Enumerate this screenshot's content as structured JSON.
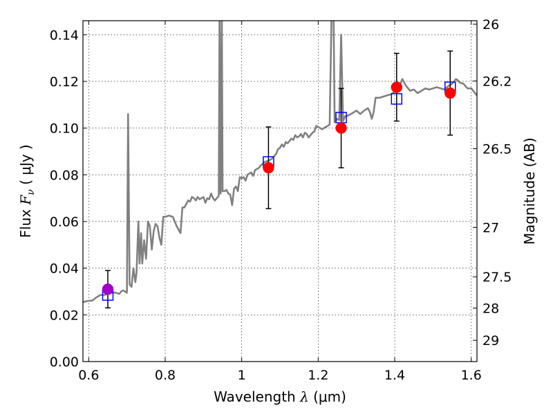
{
  "chart_data": {
    "type": "line",
    "xlabel": "Wavelength  λ (μm)",
    "xlabel_parts": {
      "prefix": "Wavelength  ",
      "symbol": "λ",
      "suffix": " (μm)"
    },
    "ylabel": "Flux  Fν  ( μJy )",
    "ylabel_parts": {
      "prefix": "Flux  ",
      "symbol": "F",
      "subscript": "ν",
      "suffix": "  ( μJy )"
    },
    "y2label": "Magnitude (AB)",
    "xlim": [
      0.585,
      1.615
    ],
    "ylim": [
      0.0,
      0.146
    ],
    "grid": true,
    "x_ticks": [
      0.6,
      0.8,
      1.0,
      1.2,
      1.4,
      1.6
    ],
    "x_tick_labels": [
      "0.6",
      "0.8",
      "1",
      "1.2",
      "1.4",
      "1.6"
    ],
    "y_ticks": [
      0.0,
      0.02,
      0.04,
      0.06,
      0.08,
      0.1,
      0.12,
      0.14
    ],
    "y_tick_labels": [
      "0.00",
      "0.02",
      "0.04",
      "0.06",
      "0.08",
      "0.10",
      "0.12",
      "0.14"
    ],
    "y2_ticks": [
      {
        "label": "26",
        "flux": 0.1445
      },
      {
        "label": "26.2",
        "flux": 0.1202
      },
      {
        "label": "26.5",
        "flux": 0.0912
      },
      {
        "label": "27",
        "flux": 0.0575
      },
      {
        "label": "27.5",
        "flux": 0.0363
      },
      {
        "label": "28",
        "flux": 0.0229
      },
      {
        "label": "29",
        "flux": 0.0091
      }
    ],
    "model_spectrum": {
      "color": "#808080",
      "points": [
        [
          0.585,
          0.0255
        ],
        [
          0.6,
          0.026
        ],
        [
          0.61,
          0.0262
        ],
        [
          0.62,
          0.0275
        ],
        [
          0.63,
          0.0285
        ],
        [
          0.64,
          0.0285
        ],
        [
          0.65,
          0.029
        ],
        [
          0.66,
          0.0295
        ],
        [
          0.67,
          0.0295
        ],
        [
          0.68,
          0.029
        ],
        [
          0.685,
          0.03
        ],
        [
          0.69,
          0.0305
        ],
        [
          0.695,
          0.03
        ],
        [
          0.7,
          0.0295
        ],
        [
          0.703,
          0.106
        ],
        [
          0.707,
          0.033
        ],
        [
          0.712,
          0.032
        ],
        [
          0.717,
          0.04
        ],
        [
          0.722,
          0.034
        ],
        [
          0.725,
          0.038
        ],
        [
          0.73,
          0.06
        ],
        [
          0.733,
          0.042
        ],
        [
          0.737,
          0.055
        ],
        [
          0.74,
          0.042
        ],
        [
          0.745,
          0.052
        ],
        [
          0.75,
          0.044
        ],
        [
          0.755,
          0.06
        ],
        [
          0.76,
          0.058
        ],
        [
          0.765,
          0.048
        ],
        [
          0.77,
          0.056
        ],
        [
          0.775,
          0.059
        ],
        [
          0.78,
          0.058
        ],
        [
          0.785,
          0.053
        ],
        [
          0.79,
          0.05
        ],
        [
          0.795,
          0.062
        ],
        [
          0.8,
          0.062
        ],
        [
          0.81,
          0.0625
        ],
        [
          0.82,
          0.062
        ],
        [
          0.83,
          0.058
        ],
        [
          0.84,
          0.055
        ],
        [
          0.845,
          0.066
        ],
        [
          0.85,
          0.066
        ],
        [
          0.86,
          0.069
        ],
        [
          0.865,
          0.0685
        ],
        [
          0.87,
          0.0705
        ],
        [
          0.875,
          0.07
        ],
        [
          0.88,
          0.069
        ],
        [
          0.885,
          0.0705
        ],
        [
          0.89,
          0.0695
        ],
        [
          0.895,
          0.07
        ],
        [
          0.9,
          0.0705
        ],
        [
          0.905,
          0.068
        ],
        [
          0.91,
          0.07
        ],
        [
          0.915,
          0.0695
        ],
        [
          0.92,
          0.072
        ],
        [
          0.925,
          0.07
        ],
        [
          0.93,
          0.069
        ],
        [
          0.935,
          0.07
        ],
        [
          0.94,
          0.071
        ],
        [
          0.942,
          0.15
        ],
        [
          0.945,
          0.072
        ],
        [
          0.948,
          0.15
        ],
        [
          0.95,
          0.073
        ],
        [
          0.955,
          0.073
        ],
        [
          0.96,
          0.0735
        ],
        [
          0.965,
          0.072
        ],
        [
          0.97,
          0.0715
        ],
        [
          0.975,
          0.067
        ],
        [
          0.98,
          0.074
        ],
        [
          0.985,
          0.075
        ],
        [
          0.99,
          0.073
        ],
        [
          0.995,
          0.079
        ],
        [
          1.0,
          0.0785
        ],
        [
          1.005,
          0.079
        ],
        [
          1.01,
          0.0775
        ],
        [
          1.015,
          0.08
        ],
        [
          1.02,
          0.0805
        ],
        [
          1.025,
          0.081
        ],
        [
          1.03,
          0.0795
        ],
        [
          1.035,
          0.082
        ],
        [
          1.04,
          0.0825
        ],
        [
          1.045,
          0.083
        ],
        [
          1.05,
          0.084
        ],
        [
          1.06,
          0.0855
        ],
        [
          1.07,
          0.086
        ],
        [
          1.075,
          0.0865
        ],
        [
          1.08,
          0.087
        ],
        [
          1.085,
          0.088
        ],
        [
          1.09,
          0.089
        ],
        [
          1.095,
          0.091
        ],
        [
          1.1,
          0.0915
        ],
        [
          1.105,
          0.093
        ],
        [
          1.11,
          0.092
        ],
        [
          1.115,
          0.094
        ],
        [
          1.12,
          0.0935
        ],
        [
          1.13,
          0.0955
        ],
        [
          1.135,
          0.095
        ],
        [
          1.14,
          0.097
        ],
        [
          1.145,
          0.096
        ],
        [
          1.15,
          0.0965
        ],
        [
          1.155,
          0.0975
        ],
        [
          1.16,
          0.096
        ],
        [
          1.165,
          0.098
        ],
        [
          1.17,
          0.0975
        ],
        [
          1.175,
          0.096
        ],
        [
          1.18,
          0.097
        ],
        [
          1.185,
          0.098
        ],
        [
          1.19,
          0.0985
        ],
        [
          1.195,
          0.101
        ],
        [
          1.2,
          0.1005
        ],
        [
          1.21,
          0.0995
        ],
        [
          1.22,
          0.1005
        ],
        [
          1.225,
          0.101
        ],
        [
          1.23,
          0.1015
        ],
        [
          1.235,
          0.15
        ],
        [
          1.24,
          0.15
        ],
        [
          1.243,
          0.1025
        ],
        [
          1.25,
          0.104
        ],
        [
          1.255,
          0.1035
        ],
        [
          1.26,
          0.14
        ],
        [
          1.265,
          0.103
        ],
        [
          1.27,
          0.105
        ],
        [
          1.28,
          0.1055
        ],
        [
          1.29,
          0.1065
        ],
        [
          1.3,
          0.1075
        ],
        [
          1.31,
          0.106
        ],
        [
          1.32,
          0.1075
        ],
        [
          1.33,
          0.1085
        ],
        [
          1.335,
          0.107
        ],
        [
          1.34,
          0.104
        ],
        [
          1.345,
          0.107
        ],
        [
          1.35,
          0.113
        ],
        [
          1.36,
          0.113
        ],
        [
          1.37,
          0.1135
        ],
        [
          1.38,
          0.114
        ],
        [
          1.39,
          0.1145
        ],
        [
          1.395,
          0.115
        ],
        [
          1.4,
          0.116
        ],
        [
          1.41,
          0.118
        ],
        [
          1.415,
          0.119
        ],
        [
          1.42,
          0.121
        ],
        [
          1.43,
          0.118
        ],
        [
          1.44,
          0.116
        ],
        [
          1.45,
          0.1165
        ],
        [
          1.46,
          0.115
        ],
        [
          1.47,
          0.116
        ],
        [
          1.48,
          0.117
        ],
        [
          1.49,
          0.1165
        ],
        [
          1.5,
          0.117
        ],
        [
          1.51,
          0.1175
        ],
        [
          1.52,
          0.117
        ],
        [
          1.53,
          0.1165
        ],
        [
          1.54,
          0.118
        ],
        [
          1.55,
          0.119
        ],
        [
          1.56,
          0.121
        ],
        [
          1.565,
          0.1205
        ],
        [
          1.57,
          0.1195
        ],
        [
          1.58,
          0.119
        ],
        [
          1.59,
          0.117
        ],
        [
          1.6,
          0.117
        ],
        [
          1.615,
          0.114
        ]
      ]
    },
    "model_photometry": {
      "marker": "open-square",
      "color": "#0000ff",
      "points": [
        {
          "x": 0.65,
          "y": 0.0285
        },
        {
          "x": 1.07,
          "y": 0.0855
        },
        {
          "x": 1.26,
          "y": 0.1045
        },
        {
          "x": 1.405,
          "y": 0.1125
        },
        {
          "x": 1.545,
          "y": 0.1175
        }
      ]
    },
    "observed_photometry": {
      "marker": "filled-circle",
      "points": [
        {
          "x": 0.65,
          "y": 0.031,
          "yerr": 0.008,
          "color": "#a000c8"
        },
        {
          "x": 1.07,
          "y": 0.083,
          "yerr": 0.0175,
          "color": "#ff0000"
        },
        {
          "x": 1.26,
          "y": 0.1,
          "yerr": 0.017,
          "color": "#ff0000"
        },
        {
          "x": 1.405,
          "y": 0.1175,
          "yerr": 0.0145,
          "color": "#ff0000"
        },
        {
          "x": 1.545,
          "y": 0.115,
          "yerr": 0.018,
          "color": "#ff0000"
        }
      ]
    }
  }
}
